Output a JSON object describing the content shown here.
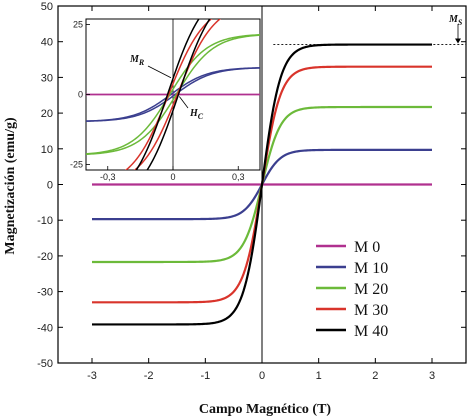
{
  "chart_data": [
    {
      "type": "line",
      "xlabel": "Campo Magnético (T)",
      "ylabel": "Magnetización (emu/g)",
      "xlim": [
        -3.6,
        3.6
      ],
      "ylim": [
        -50,
        50
      ],
      "xticks": [
        -3,
        -2,
        -1,
        0,
        1,
        2,
        3
      ],
      "yticks": [
        -50,
        -40,
        -30,
        -20,
        -10,
        0,
        10,
        20,
        30,
        40,
        50
      ],
      "xtick_labels": [
        "-3",
        "-2",
        "-1",
        "0",
        "1",
        "2",
        "3"
      ],
      "ytick_labels": [
        "-50",
        "-40",
        "-30",
        "-20",
        "-10",
        "0",
        "10",
        "20",
        "30",
        "40",
        "50"
      ],
      "legend_position": "bottom-right",
      "series": [
        {
          "name": "M 0",
          "color": "#b0308f",
          "ms": 0,
          "x_sat": 0.3,
          "sample_x": [
            -3,
            -1,
            0,
            1,
            3
          ],
          "sample_y": [
            0,
            0,
            0,
            0,
            0
          ]
        },
        {
          "name": "M 10",
          "color": "#3b3f8f",
          "ms": 9.7,
          "x_sat": 0.18,
          "sample_x": [
            -3,
            -1,
            -0.2,
            0,
            0.2,
            1,
            3
          ],
          "sample_y": [
            -9.7,
            -9.5,
            -7.3,
            0,
            7.3,
            9.5,
            9.7
          ]
        },
        {
          "name": "M 20",
          "color": "#6cba3a",
          "ms": 21.7,
          "x_sat": 0.18,
          "sample_x": [
            -3,
            -1,
            -0.2,
            0,
            0.2,
            1,
            3
          ],
          "sample_y": [
            -21.7,
            -21.2,
            -16.5,
            0,
            16.5,
            21.2,
            21.7
          ]
        },
        {
          "name": "M 30",
          "color": "#d9342b",
          "ms": 33,
          "x_sat": 0.18,
          "sample_x": [
            -3,
            -1,
            -0.2,
            0,
            0.2,
            1,
            3
          ],
          "sample_y": [
            -33,
            -32.3,
            -25,
            0,
            25,
            32.3,
            33
          ]
        },
        {
          "name": "M 40",
          "color": "#000000",
          "ms": 39.2,
          "x_sat": 0.18,
          "sample_x": [
            -3,
            -1,
            -0.2,
            0,
            0.2,
            1,
            3
          ],
          "sample_y": [
            -39.2,
            -38.4,
            -29.8,
            0,
            29.8,
            38.4,
            39.2
          ]
        }
      ],
      "annotations": [
        {
          "text": "M",
          "subscript": "S",
          "value": 39.2
        }
      ]
    },
    {
      "type": "line",
      "role": "inset",
      "xlim": [
        -0.4,
        0.4
      ],
      "ylim": [
        -27,
        27
      ],
      "xticks": [
        -0.3,
        0,
        0.3
      ],
      "yticks": [
        -25,
        0,
        25
      ],
      "xtick_labels": [
        "-0,3",
        "0",
        "0,3"
      ],
      "ytick_labels": [
        "-25",
        "0",
        "25"
      ],
      "series_hysteresis": [
        {
          "name": "M 0",
          "ms": 0,
          "hc": 0
        },
        {
          "name": "M 10",
          "ms": 9.7,
          "hc": 0.01
        },
        {
          "name": "M 20",
          "ms": 21.7,
          "hc": 0.015
        },
        {
          "name": "M 30",
          "ms": 33,
          "hc": 0.02
        },
        {
          "name": "M 40",
          "ms": 39.2,
          "hc": 0.025
        }
      ],
      "annotations": [
        {
          "text": "M",
          "subscript": "R"
        },
        {
          "text": "H",
          "subscript": "C"
        }
      ]
    }
  ]
}
